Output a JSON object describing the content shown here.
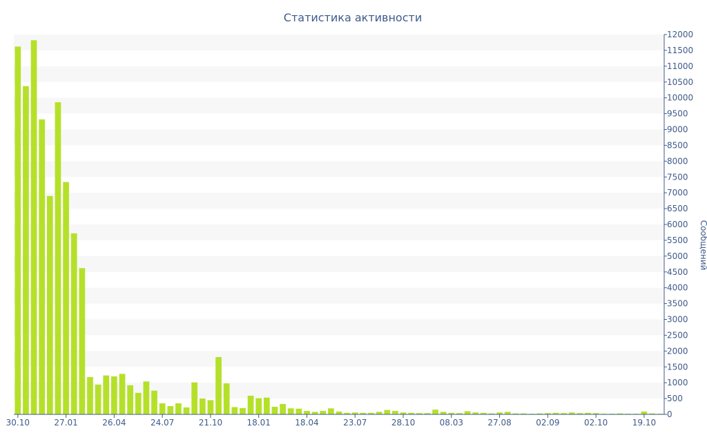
{
  "chart_data": {
    "type": "bar",
    "title": "Статистика активности",
    "xlabel": "",
    "ylabel": "Сообщений",
    "ylim": [
      0,
      12000
    ],
    "y_ticks": [
      0,
      500,
      1000,
      1500,
      2000,
      2500,
      3000,
      3500,
      4000,
      4500,
      5000,
      5500,
      6000,
      6500,
      7000,
      7500,
      8000,
      8500,
      9000,
      9500,
      10000,
      10500,
      11000,
      11500,
      12000
    ],
    "y_axis_side": "right",
    "grid": "alternating horizontal bands",
    "legend": "none",
    "bar_color": "#b5e02a",
    "band_color": "#f7f7f7",
    "text_color": "#3e5a8a",
    "x_tick_labels": [
      {
        "index": 0,
        "label": "30.10"
      },
      {
        "index": 6,
        "label": "27.01"
      },
      {
        "index": 12,
        "label": "26.04"
      },
      {
        "index": 18,
        "label": "24.07"
      },
      {
        "index": 24,
        "label": "21.10"
      },
      {
        "index": 30,
        "label": "18.01"
      },
      {
        "index": 36,
        "label": "18.04"
      },
      {
        "index": 42,
        "label": "23.07"
      },
      {
        "index": 48,
        "label": "28.10"
      },
      {
        "index": 54,
        "label": "08.03"
      },
      {
        "index": 60,
        "label": "27.08"
      },
      {
        "index": 66,
        "label": "02.09"
      },
      {
        "index": 72,
        "label": "02.10"
      },
      {
        "index": 78,
        "label": "19.10"
      }
    ],
    "values": [
      11620,
      10370,
      11820,
      9320,
      6900,
      9860,
      7340,
      5720,
      4620,
      1180,
      940,
      1230,
      1200,
      1280,
      920,
      680,
      1040,
      750,
      350,
      260,
      350,
      220,
      1010,
      500,
      450,
      1810,
      980,
      230,
      200,
      590,
      510,
      530,
      240,
      330,
      190,
      180,
      110,
      80,
      110,
      190,
      90,
      50,
      60,
      50,
      50,
      80,
      140,
      110,
      60,
      50,
      40,
      40,
      150,
      80,
      50,
      40,
      100,
      60,
      50,
      30,
      60,
      80,
      30,
      30,
      20,
      30,
      40,
      50,
      40,
      60,
      40,
      50,
      40,
      20,
      20,
      30,
      20,
      20,
      90,
      30,
      20
    ]
  }
}
